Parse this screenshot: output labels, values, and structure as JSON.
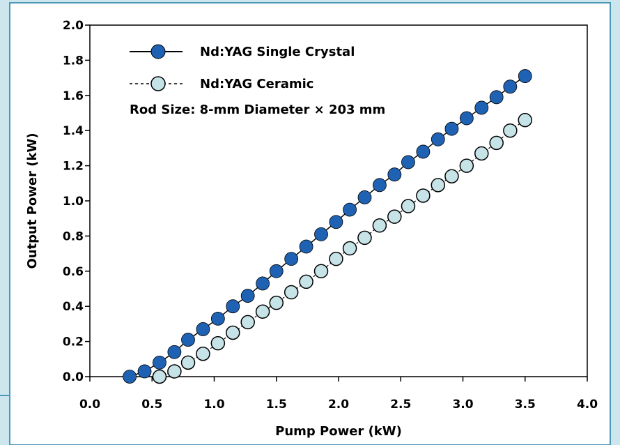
{
  "colors": {
    "frame_bg": "#cde6ee",
    "frame_border": "#4a97b6",
    "plot_bg": "#ffffff",
    "crystal_fill": "#1f62b3",
    "ceramic_fill": "#c6e3e7",
    "marker_stroke": "#000000"
  },
  "chart_data": {
    "type": "scatter",
    "title": "",
    "xlabel": "Pump Power (kW)",
    "ylabel": "Output Power (kW)",
    "xlim": [
      0.0,
      4.0
    ],
    "ylim": [
      0.0,
      2.0
    ],
    "xticks": [
      "0.0",
      "0.5",
      "1.0",
      "1.5",
      "2.0",
      "2.5",
      "3.0",
      "3.5",
      "4.0"
    ],
    "yticks": [
      "0.0",
      "0.2",
      "0.4",
      "0.6",
      "0.8",
      "1.0",
      "1.2",
      "1.4",
      "1.6",
      "1.8",
      "2.0"
    ],
    "grid": false,
    "legend_position": "top-left",
    "annotation": "Rod Size: 8-mm Diameter × 203 mm",
    "series": [
      {
        "name": "Nd:YAG Single Crystal",
        "marker": "filled-circle",
        "line": "solid",
        "x": [
          0.32,
          0.44,
          0.56,
          0.68,
          0.79,
          0.91,
          1.03,
          1.15,
          1.27,
          1.39,
          1.5,
          1.62,
          1.74,
          1.86,
          1.98,
          2.09,
          2.21,
          2.33,
          2.45,
          2.56,
          2.68,
          2.8,
          2.91,
          3.03,
          3.15,
          3.27,
          3.38,
          3.5
        ],
        "y": [
          0.0,
          0.03,
          0.08,
          0.14,
          0.21,
          0.27,
          0.33,
          0.4,
          0.46,
          0.53,
          0.6,
          0.67,
          0.74,
          0.81,
          0.88,
          0.95,
          1.02,
          1.09,
          1.15,
          1.22,
          1.28,
          1.35,
          1.41,
          1.47,
          1.53,
          1.59,
          1.65,
          1.71
        ]
      },
      {
        "name": "Nd:YAG Ceramic",
        "marker": "open-circle",
        "line": "dotted",
        "x": [
          0.56,
          0.68,
          0.79,
          0.91,
          1.03,
          1.15,
          1.27,
          1.39,
          1.5,
          1.62,
          1.74,
          1.86,
          1.98,
          2.09,
          2.21,
          2.33,
          2.45,
          2.56,
          2.68,
          2.8,
          2.91,
          3.03,
          3.15,
          3.27,
          3.38,
          3.5
        ],
        "y": [
          0.0,
          0.03,
          0.08,
          0.13,
          0.19,
          0.25,
          0.31,
          0.37,
          0.42,
          0.48,
          0.54,
          0.6,
          0.67,
          0.73,
          0.79,
          0.86,
          0.91,
          0.97,
          1.03,
          1.09,
          1.14,
          1.2,
          1.27,
          1.33,
          1.4,
          1.46
        ]
      }
    ]
  }
}
